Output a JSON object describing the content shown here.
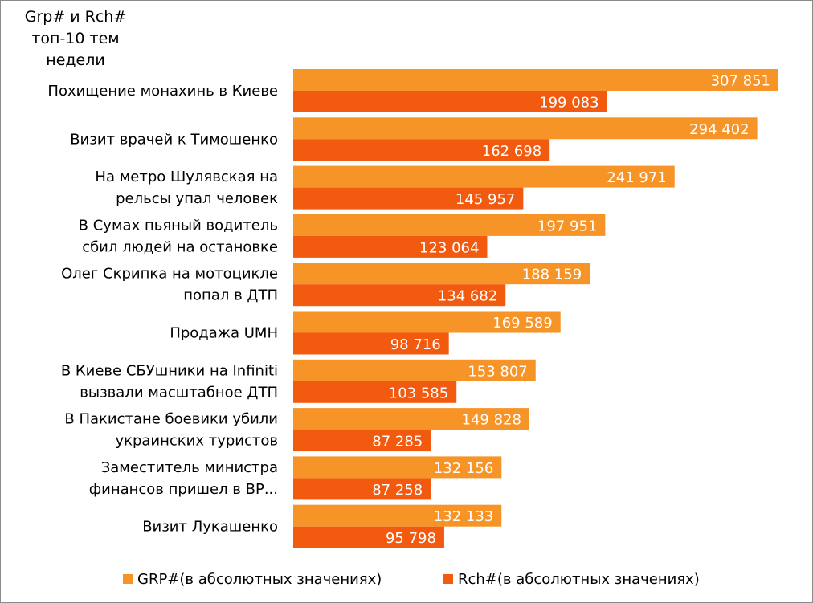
{
  "chart_data": {
    "type": "bar",
    "orientation": "horizontal",
    "title": [
      "Grp# и Rch#",
      "топ-10 тем",
      "недели"
    ],
    "categories": [
      [
        "Похищение монахинь в Киеве"
      ],
      [
        "Визит врачей к Тимошенко"
      ],
      [
        "На метро Шулявская на",
        "рельсы упал человек"
      ],
      [
        "В Сумах пьяный водитель",
        "сбил людей на остановке"
      ],
      [
        "Олег Скрипка на мотоцикле",
        "попал в ДТП"
      ],
      [
        "Продажа UMH"
      ],
      [
        "В Киеве СБУшники на Infiniti",
        "вызвали масштабное ДТП"
      ],
      [
        "В Пакистане боевики убили",
        "украинских туристов"
      ],
      [
        "Заместитель министра",
        "финансов пришел в ВР..."
      ],
      [
        "Визит Лукашенко"
      ]
    ],
    "series": [
      {
        "name": "GRP#(в абсолютных значениях)",
        "color": "#F79428",
        "values": [
          307851,
          294402,
          241971,
          197951,
          188159,
          169589,
          153807,
          149828,
          132156,
          132133
        ],
        "labels": [
          "307 851",
          "294 402",
          "241 971",
          "197 951",
          "188 159",
          "169 589",
          "153 807",
          "149 828",
          "132 156",
          "132 133"
        ]
      },
      {
        "name": "Rch#(в абсолютных значениях)",
        "color": "#F15A0F",
        "values": [
          199083,
          162698,
          145957,
          123064,
          134682,
          98716,
          103585,
          87285,
          87258,
          95798
        ],
        "labels": [
          "199 083",
          "162 698",
          "145 957",
          "123 064",
          "134 682",
          "98 716",
          "103 585",
          "87 285",
          "87 258",
          "95 798"
        ]
      }
    ],
    "xlim": [
      0,
      310000
    ],
    "grid": false,
    "legend_position": "bottom"
  }
}
